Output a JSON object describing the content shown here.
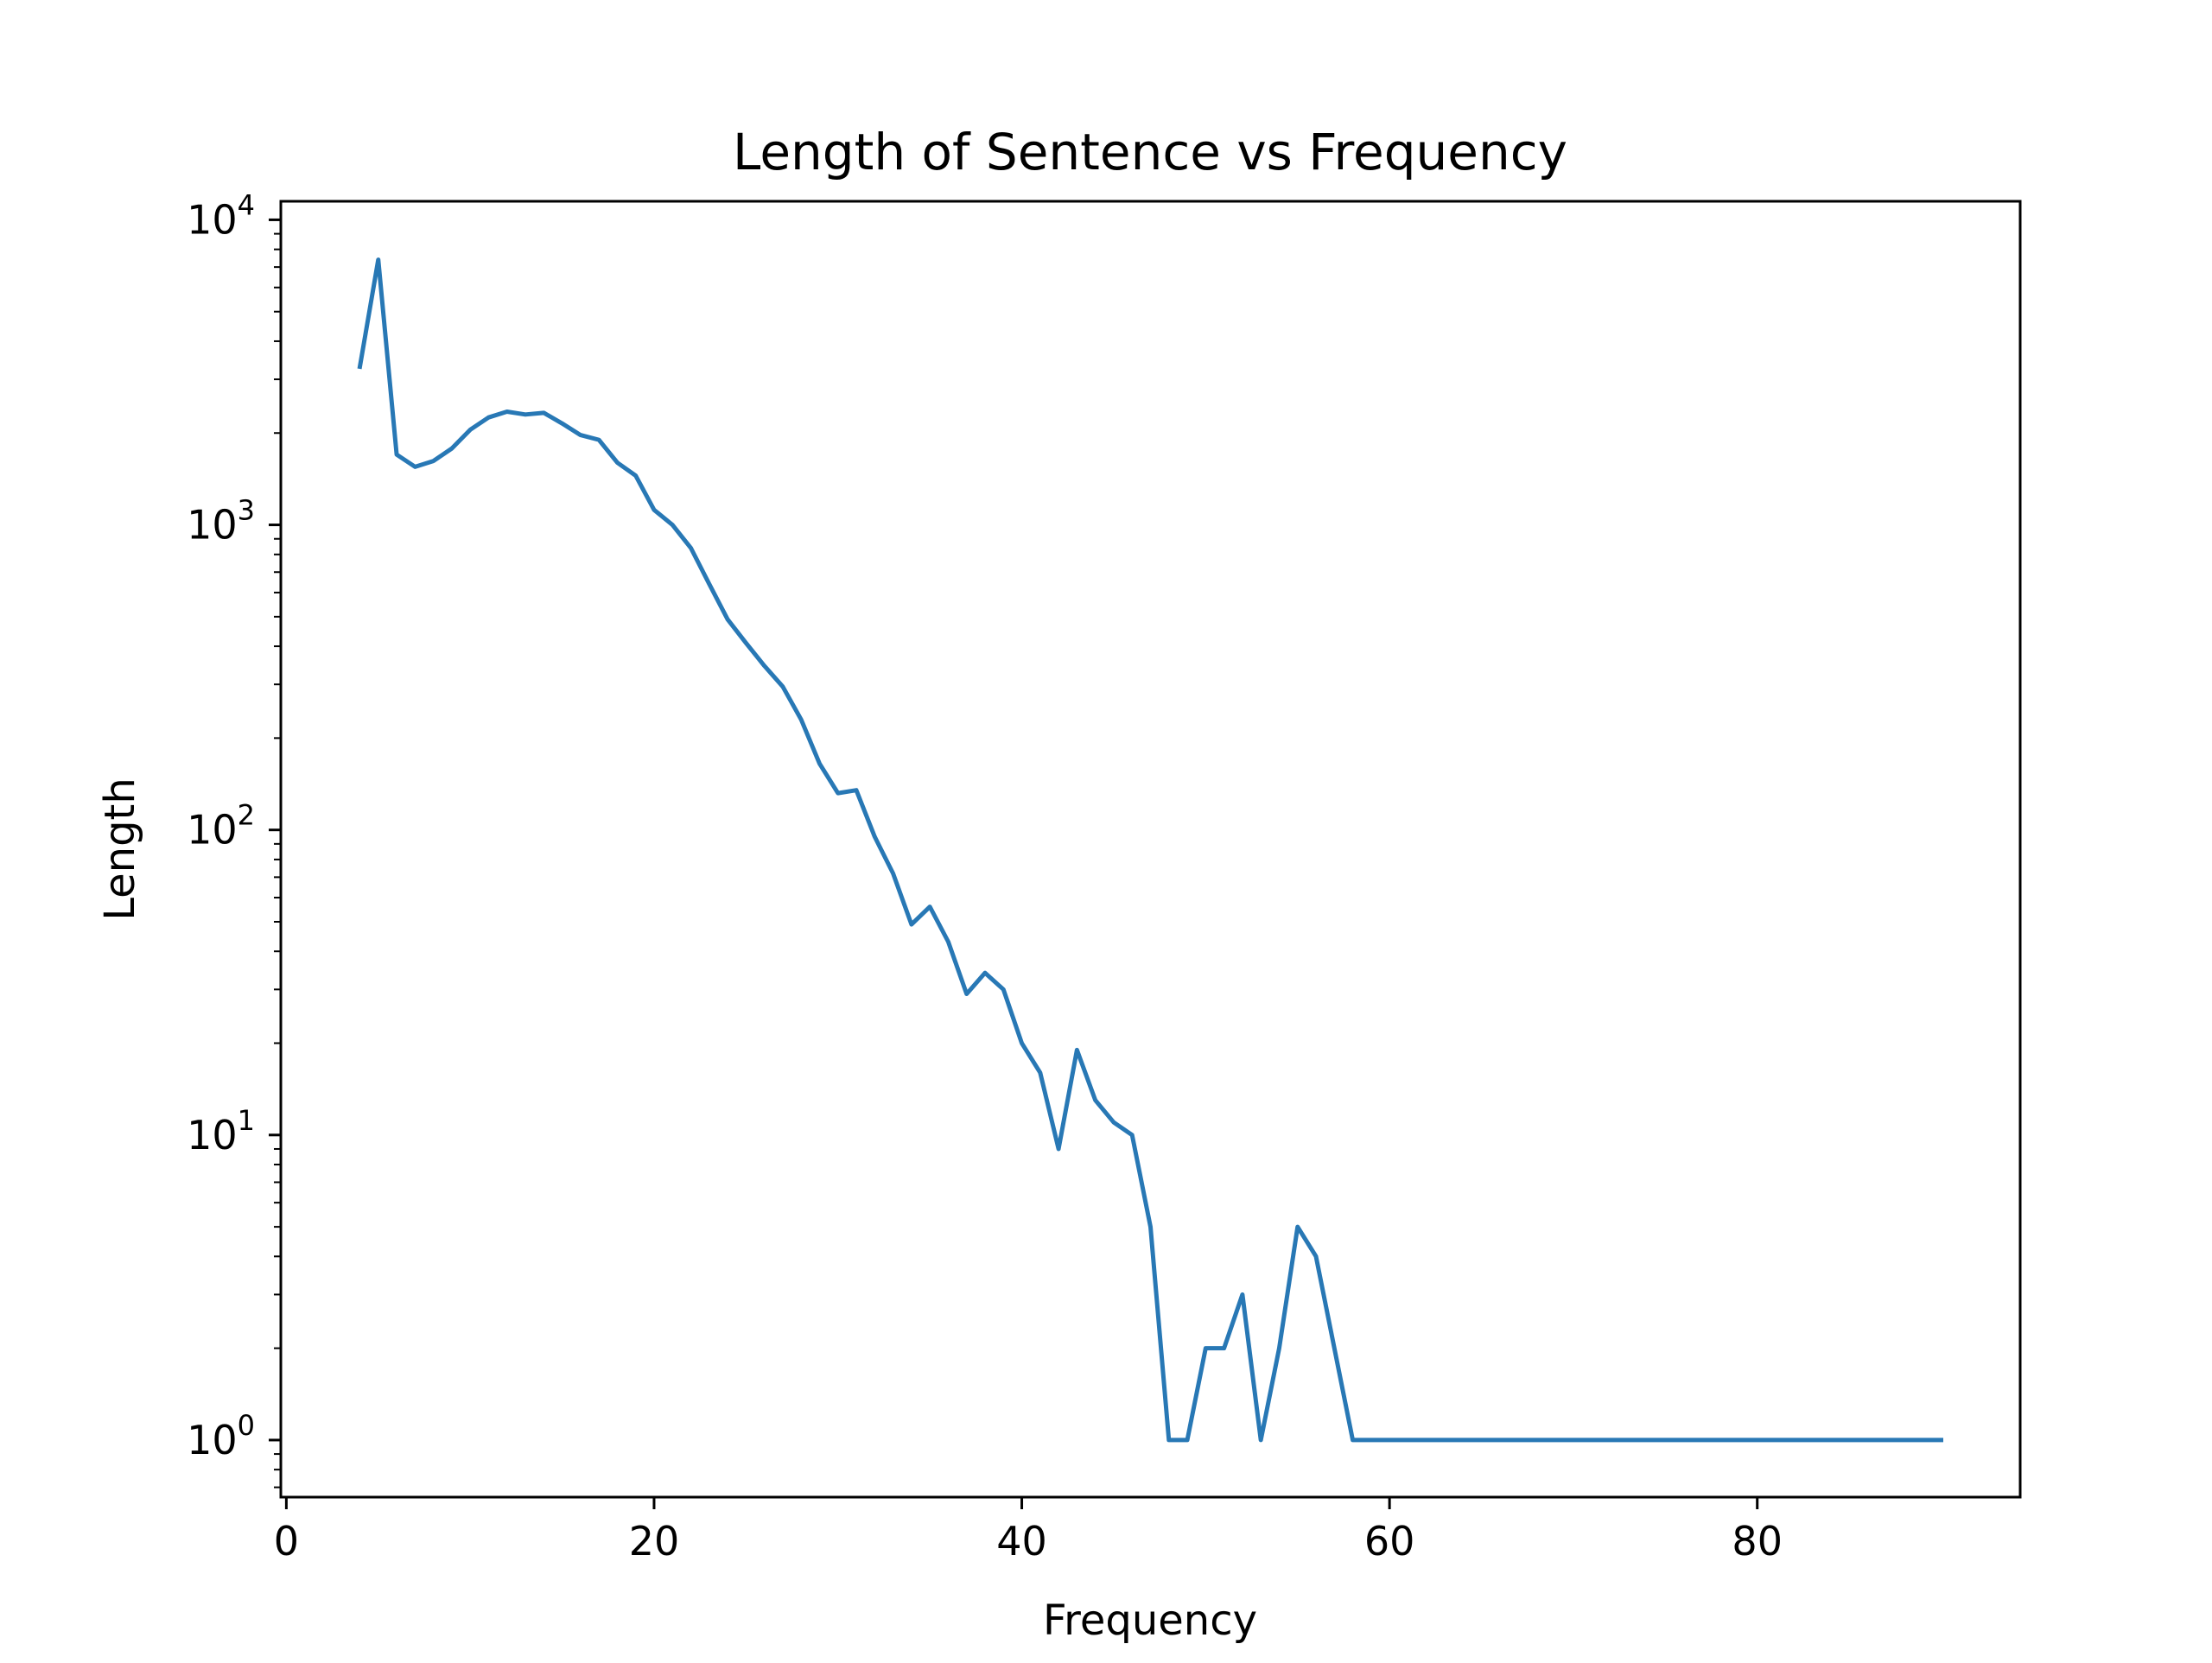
{
  "chart_data": {
    "type": "line",
    "title": "Length of Sentence vs Frequency",
    "xlabel": "Frequency",
    "ylabel": "Length",
    "x_scale": "linear",
    "y_scale": "log",
    "xlim": [
      -0.3,
      94.3
    ],
    "ylim": [
      0.65,
      11500
    ],
    "xticks": [
      0,
      20,
      40,
      60,
      80
    ],
    "xtick_labels": [
      "0",
      "20",
      "40",
      "60",
      "80"
    ],
    "yticks": [
      1,
      10,
      100,
      1000,
      10000
    ],
    "ytick_labels": [
      {
        "base": "10",
        "exp": "0"
      },
      {
        "base": "10",
        "exp": "1"
      },
      {
        "base": "10",
        "exp": "2"
      },
      {
        "base": "10",
        "exp": "3"
      },
      {
        "base": "10",
        "exp": "4"
      }
    ],
    "grid": false,
    "line_color": "#2878b5",
    "series": [
      {
        "x": [
          4,
          5,
          6,
          7,
          8,
          9,
          10,
          11,
          12,
          13,
          14,
          15,
          16,
          17,
          18,
          19,
          20,
          21,
          22,
          23,
          24,
          25,
          26,
          27,
          28,
          29,
          30,
          31,
          32,
          33,
          34,
          35,
          36,
          37,
          38,
          39,
          40,
          41,
          42,
          43,
          44,
          45,
          46,
          47,
          48,
          49,
          50,
          51,
          52,
          53,
          54,
          55,
          56,
          57,
          58,
          59,
          60,
          61,
          62,
          63,
          64,
          65,
          66,
          67,
          68,
          69,
          70,
          71,
          72,
          73,
          74,
          75,
          76,
          77,
          78,
          79,
          80,
          81,
          82,
          83,
          84,
          85,
          86,
          87,
          88,
          89,
          90
        ],
        "values": [
          3300,
          7400,
          1700,
          1550,
          1620,
          1780,
          2050,
          2250,
          2350,
          2300,
          2330,
          2150,
          1970,
          1900,
          1600,
          1450,
          1120,
          1000,
          840,
          640,
          490,
          410,
          345,
          295,
          230,
          165,
          132,
          135,
          95,
          72,
          49,
          56,
          43,
          29,
          34,
          30,
          20,
          16,
          9,
          19,
          13,
          11,
          10,
          5,
          1,
          1,
          2,
          2,
          3,
          1,
          2,
          5,
          4,
          2,
          1,
          1,
          1,
          1,
          1,
          1,
          1,
          1,
          1,
          1,
          1,
          1,
          1,
          1,
          1,
          1,
          1,
          1,
          1,
          1,
          1,
          1,
          1,
          1,
          1,
          1,
          1,
          1,
          1,
          1,
          1,
          1,
          1
        ]
      }
    ]
  }
}
